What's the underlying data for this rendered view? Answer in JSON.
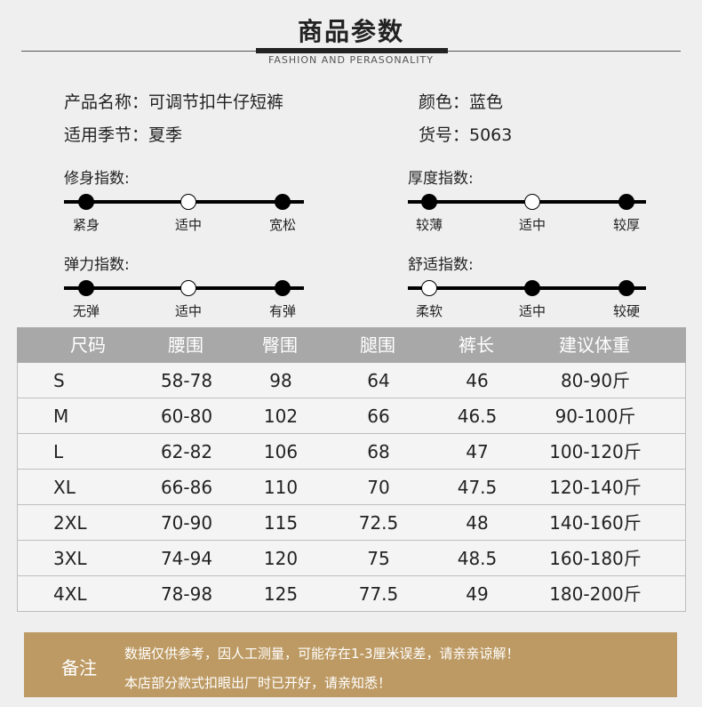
{
  "header": {
    "title": "商品参数",
    "subtitle": "FASHION AND PERASONALITY"
  },
  "info": {
    "name": "产品名称：可调节扣牛仔短裤",
    "color": "颜色：蓝色",
    "season": "适用季节：夏季",
    "sku": "货号：5063"
  },
  "indicators": [
    {
      "label": "修身指数:",
      "ticks": [
        "紧身",
        "适中",
        "宽松"
      ],
      "filled": [
        true,
        false,
        true
      ]
    },
    {
      "label": "厚度指数:",
      "ticks": [
        "较薄",
        "适中",
        "较厚"
      ],
      "filled": [
        true,
        false,
        true
      ]
    },
    {
      "label": "弹力指数:",
      "ticks": [
        "无弹",
        "适中",
        "有弹"
      ],
      "filled": [
        true,
        false,
        true
      ]
    },
    {
      "label": "舒适指数:",
      "ticks": [
        "柔软",
        "适中",
        "较硬"
      ],
      "filled": [
        false,
        true,
        true
      ]
    }
  ],
  "size_table": {
    "headers": [
      "尺码",
      "腰围",
      "臀围",
      "腿围",
      "裤长",
      "建议体重"
    ],
    "rows": [
      [
        "S",
        "58-78",
        "98",
        "64",
        "46",
        "80-90斤"
      ],
      [
        "M",
        "60-80",
        "102",
        "66",
        "46.5",
        "90-100斤"
      ],
      [
        "L",
        "62-82",
        "106",
        "68",
        "47",
        "100-120斤"
      ],
      [
        "XL",
        "66-86",
        "110",
        "70",
        "47.5",
        "120-140斤"
      ],
      [
        "2XL",
        "70-90",
        "115",
        "72.5",
        "48",
        "140-160斤"
      ],
      [
        "3XL",
        "74-94",
        "120",
        "75",
        "48.5",
        "160-180斤"
      ],
      [
        "4XL",
        "78-98",
        "125",
        "77.5",
        "49",
        "180-200斤"
      ]
    ]
  },
  "note": {
    "title": "备注",
    "lines": [
      "数据仅供参考，因人工测量，可能存在1-3厘米误差，请亲亲谅解！",
      "本店部分款式扣眼出厂时已开好，请亲知悉！"
    ]
  },
  "colors": {
    "table_header": "#a8a8a8",
    "note_background": "#bd9a63",
    "background": "#efefef"
  }
}
